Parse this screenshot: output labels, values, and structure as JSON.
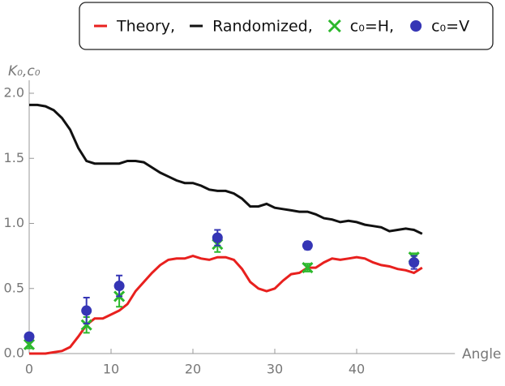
{
  "chart_data": {
    "type": "line",
    "y_label": "K₀,c₀",
    "x_label": "Angle",
    "xlim": [
      0,
      52
    ],
    "ylim": [
      0,
      2.1
    ],
    "xticks": [
      0,
      10,
      20,
      30,
      40
    ],
    "yticks": [
      {
        "value": 0,
        "label": "0.0"
      },
      0.5,
      {
        "value": 1,
        "label": "1.0"
      },
      1.5,
      {
        "value": 2,
        "label": "2.0"
      }
    ],
    "series": [
      {
        "name": "Theory,",
        "kind": "line",
        "color": "#e8201e",
        "x": [
          0,
          1,
          2,
          3,
          4,
          5,
          6,
          7,
          8,
          9,
          10,
          11,
          12,
          13,
          14,
          15,
          16,
          17,
          18,
          19,
          20,
          21,
          22,
          23,
          24,
          25,
          26,
          27,
          28,
          29,
          30,
          31,
          32,
          33,
          34,
          35,
          36,
          37,
          38,
          39,
          40,
          41,
          42,
          43,
          44,
          45,
          46,
          47,
          48
        ],
        "values": [
          0,
          0,
          0,
          0.01,
          0.02,
          0.05,
          0.13,
          0.22,
          0.27,
          0.27,
          0.3,
          0.33,
          0.38,
          0.48,
          0.55,
          0.62,
          0.68,
          0.72,
          0.73,
          0.73,
          0.75,
          0.73,
          0.72,
          0.74,
          0.74,
          0.72,
          0.65,
          0.55,
          0.5,
          0.48,
          0.5,
          0.56,
          0.61,
          0.62,
          0.66,
          0.66,
          0.7,
          0.73,
          0.72,
          0.73,
          0.74,
          0.73,
          0.7,
          0.68,
          0.67,
          0.65,
          0.64,
          0.62,
          0.66
        ]
      },
      {
        "name": "Randomized,",
        "kind": "line",
        "color": "#111111",
        "x": [
          0,
          1,
          2,
          3,
          4,
          5,
          6,
          7,
          8,
          9,
          10,
          11,
          12,
          13,
          14,
          15,
          16,
          17,
          18,
          19,
          20,
          21,
          22,
          23,
          24,
          25,
          26,
          27,
          28,
          29,
          30,
          31,
          32,
          33,
          34,
          35,
          36,
          37,
          38,
          39,
          40,
          41,
          42,
          43,
          44,
          45,
          46,
          47,
          48
        ],
        "values": [
          1.91,
          1.91,
          1.9,
          1.87,
          1.81,
          1.72,
          1.58,
          1.48,
          1.46,
          1.46,
          1.46,
          1.46,
          1.48,
          1.48,
          1.47,
          1.43,
          1.39,
          1.36,
          1.33,
          1.31,
          1.31,
          1.29,
          1.26,
          1.25,
          1.25,
          1.23,
          1.19,
          1.13,
          1.13,
          1.15,
          1.12,
          1.11,
          1.1,
          1.09,
          1.09,
          1.07,
          1.04,
          1.03,
          1.01,
          1.02,
          1.01,
          0.99,
          0.98,
          0.97,
          0.94,
          0.95,
          0.96,
          0.95,
          0.92
        ]
      },
      {
        "name": "c₀=H,",
        "kind": "cross",
        "color": "#2db82d",
        "x": [
          0,
          7,
          11,
          23,
          34,
          47
        ],
        "values": [
          0.07,
          0.22,
          0.44,
          0.84,
          0.66,
          0.74
        ],
        "errors": [
          0.03,
          0.06,
          0.08,
          0.06,
          0.03,
          0.03
        ]
      },
      {
        "name": "c₀=V",
        "kind": "dot",
        "color": "#3535b5",
        "x": [
          0,
          7,
          11,
          23,
          34,
          47
        ],
        "values": [
          0.13,
          0.33,
          0.52,
          0.89,
          0.83,
          0.7
        ],
        "errors": [
          0.02,
          0.1,
          0.08,
          0.06,
          0.03,
          0.05
        ]
      }
    ]
  }
}
